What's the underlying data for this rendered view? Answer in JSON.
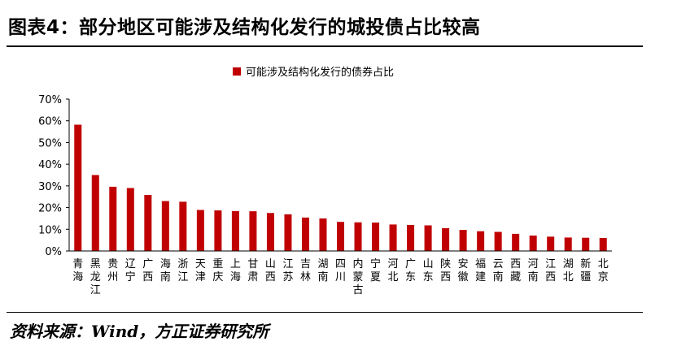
{
  "header": {
    "title": "图表4：部分地区可能涉及结构化发行的城投债占比较高"
  },
  "footer": {
    "source": "资料来源：Wind，方正证券研究所"
  },
  "chart_data": {
    "type": "bar",
    "title": "",
    "xlabel": "",
    "ylabel": "",
    "ylim": [
      0,
      70
    ],
    "yticks": [
      "0%",
      "10%",
      "20%",
      "30%",
      "40%",
      "50%",
      "60%",
      "70%"
    ],
    "legend_position": "top",
    "grid": false,
    "bar_color": "#c00000",
    "categories": [
      "青海",
      "黑龙江",
      "贵州",
      "辽宁",
      "广西",
      "海南",
      "浙江",
      "天津",
      "重庆",
      "上海",
      "甘肃",
      "山西",
      "江苏",
      "吉林",
      "湖南",
      "四川",
      "内蒙古",
      "宁夏",
      "河北",
      "广东",
      "山东",
      "陕西",
      "安徽",
      "福建",
      "云南",
      "西藏",
      "河南",
      "江西",
      "湖北",
      "新疆",
      "北京"
    ],
    "series": [
      {
        "name": "可能涉及结构化发行的债券占比",
        "values": [
          58.2,
          35.0,
          29.6,
          29.0,
          25.8,
          23.0,
          22.7,
          18.9,
          18.7,
          18.4,
          18.3,
          17.5,
          16.9,
          15.4,
          15.0,
          13.4,
          13.2,
          13.1,
          12.2,
          12.0,
          11.8,
          10.5,
          9.7,
          9.1,
          8.8,
          7.9,
          7.1,
          6.6,
          6.2,
          6.1,
          6.0
        ]
      }
    ]
  }
}
